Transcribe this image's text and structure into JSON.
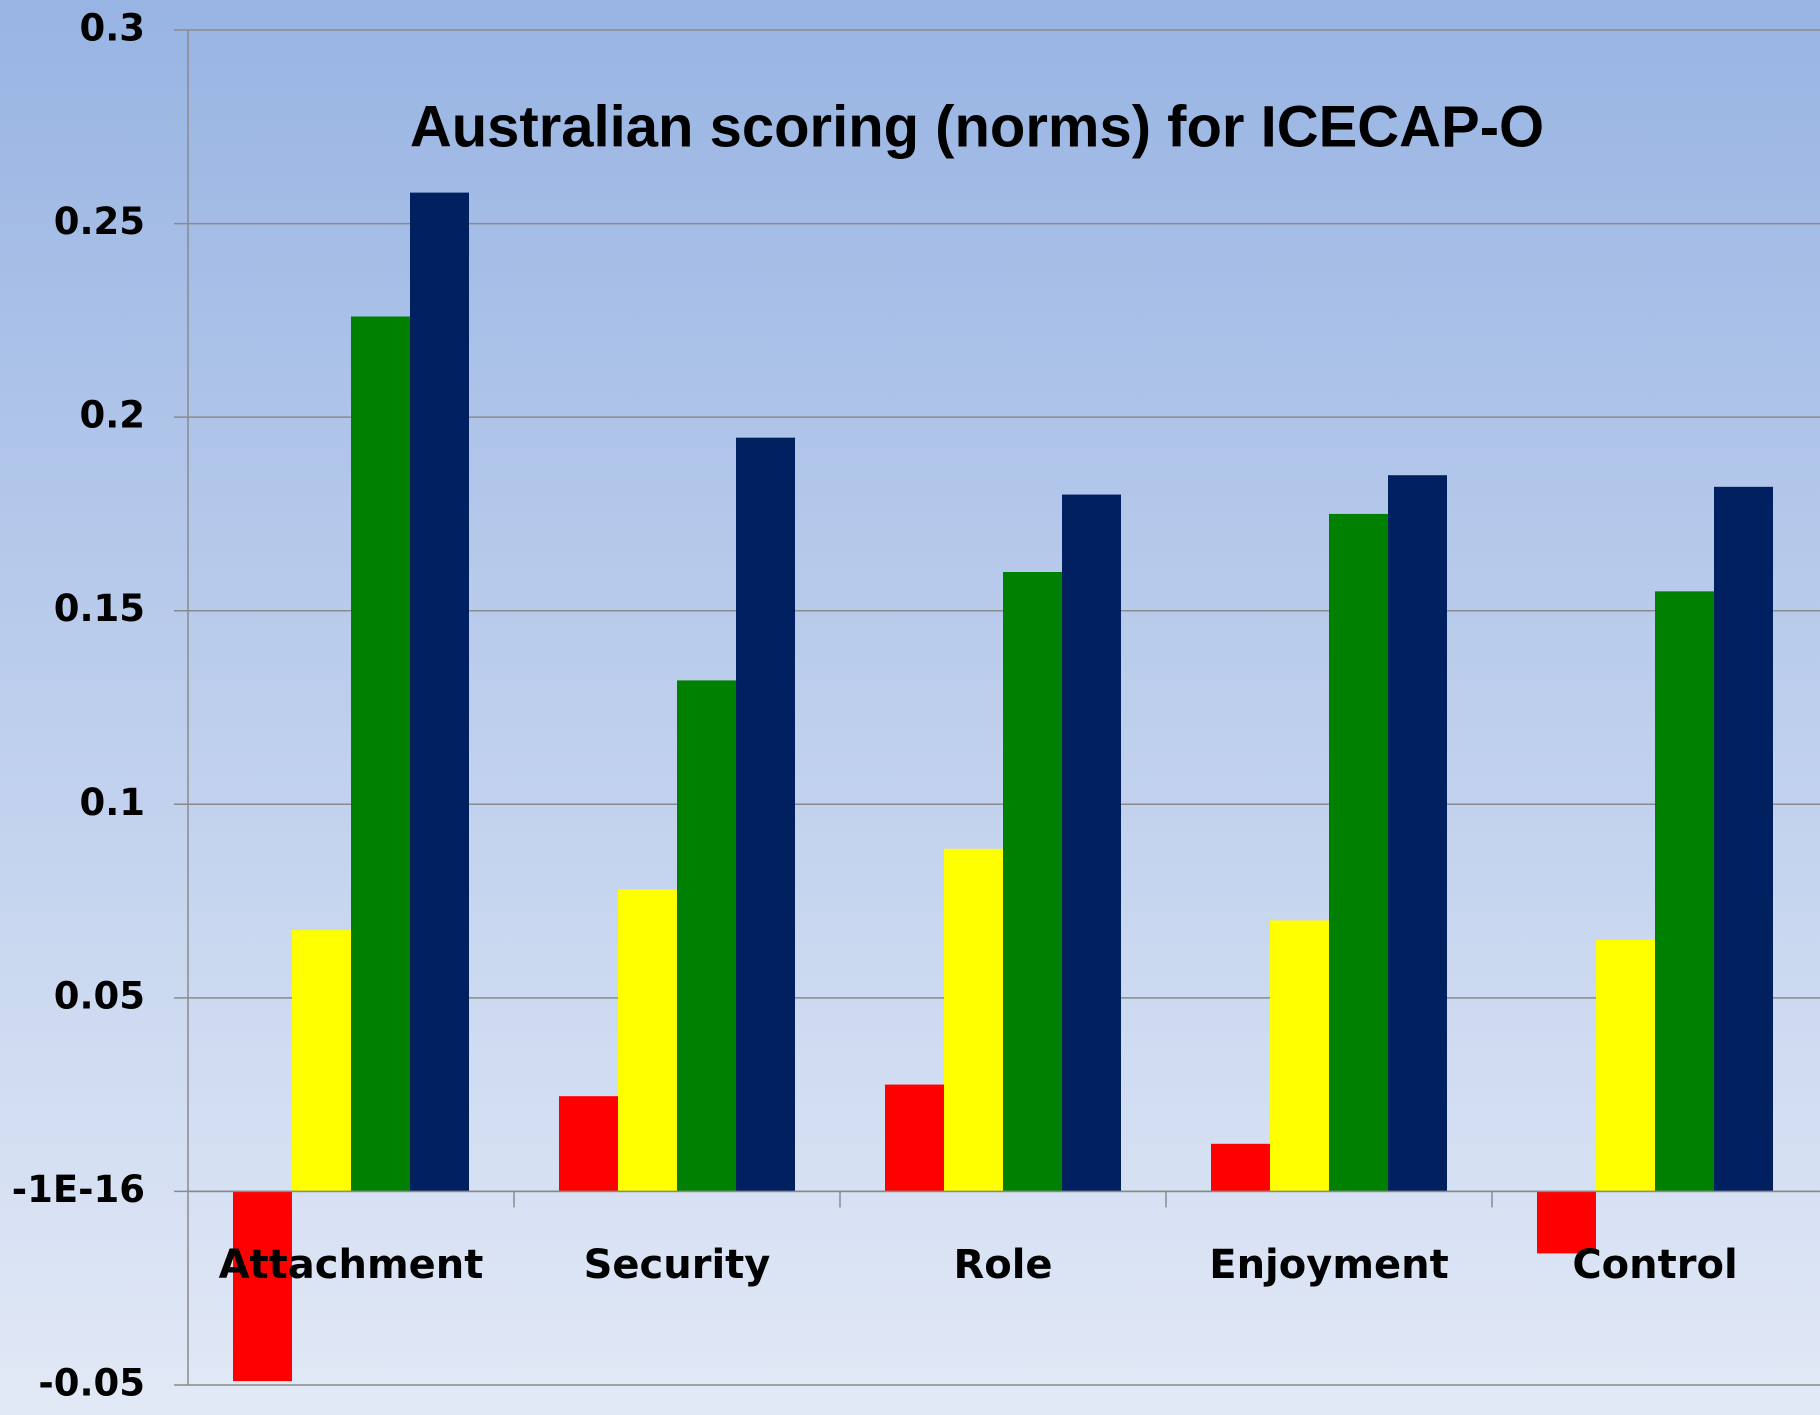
{
  "chart_data": {
    "type": "bar",
    "title": "Australian scoring (norms) for ICECAP-O",
    "categories": [
      "Attachment",
      "Security",
      "Role",
      "Enjoyment",
      "Control"
    ],
    "series": [
      {
        "color": "#ff0000",
        "values": [
          -0.049,
          0.0246,
          0.0276,
          0.0123,
          -0.016
        ]
      },
      {
        "color": "#ffff00",
        "values": [
          0.0675,
          0.078,
          0.0885,
          0.07,
          0.065
        ]
      },
      {
        "color": "#008000",
        "values": [
          0.226,
          0.132,
          0.16,
          0.175,
          0.155
        ]
      },
      {
        "color": "#002060",
        "values": [
          0.258,
          0.1947,
          0.18,
          0.185,
          0.182
        ]
      }
    ],
    "ylim": [
      -0.05,
      0.3
    ],
    "yticks": [
      -0.05,
      {
        "value": -1e-16,
        "label": "-1E-16"
      },
      0.05,
      0.1,
      0.15,
      0.2,
      0.25,
      0.3
    ],
    "grid": true
  }
}
